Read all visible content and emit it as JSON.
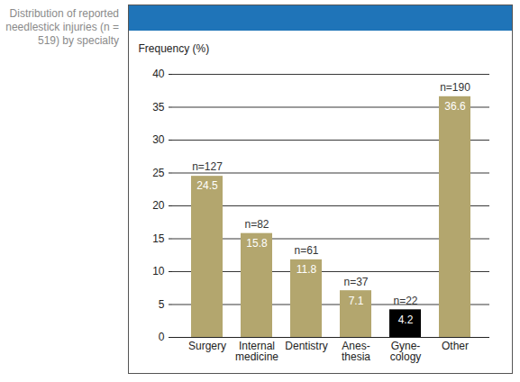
{
  "chart_data": {
    "type": "bar",
    "title": "Distribution of reported needlestick injuries (n = 519) by specialty",
    "y_label": "Frequency (%)",
    "categories": [
      "Surgery",
      "Internal\nmedicine",
      "Dentistry",
      "Anes-\nthesia",
      "Gyne-\ncology",
      "Other"
    ],
    "values": [
      24.5,
      15.8,
      11.8,
      7.1,
      4.2,
      36.6
    ],
    "counts": [
      127,
      82,
      61,
      37,
      22,
      190
    ],
    "count_labels": [
      "n=127",
      "n=82",
      "n=61",
      "n=37",
      "n=22",
      "n=190"
    ],
    "colors": [
      "#b3a66e",
      "#b3a66e",
      "#b3a66e",
      "#b3a66e",
      "#000000",
      "#b3a66e"
    ],
    "ylim": [
      0,
      40
    ],
    "yticks": [
      0,
      5,
      10,
      15,
      20,
      25,
      30,
      35,
      40
    ],
    "grid": true,
    "data_labels": true
  }
}
